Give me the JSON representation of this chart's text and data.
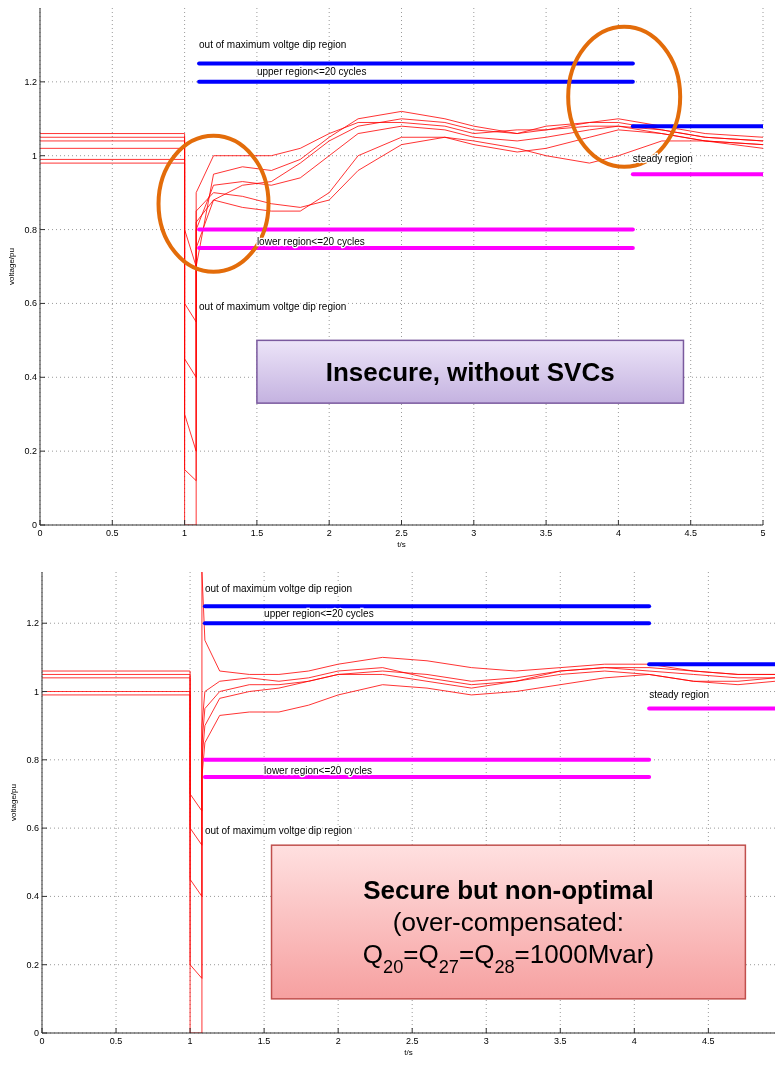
{
  "chart_data": [
    {
      "type": "line",
      "xlabel": "t/s",
      "ylabel": "voltage/pu",
      "xlim": [
        0,
        5
      ],
      "ylim": [
        0,
        1.4
      ],
      "xticks": [
        0,
        0.5,
        1,
        1.5,
        2,
        2.5,
        3,
        3.5,
        4,
        4.5,
        5
      ],
      "yticks": [
        0,
        0.2,
        0.4,
        0.6,
        0.8,
        1,
        1.2
      ],
      "grid": true,
      "line_style": "solid",
      "x": [
        0,
        1,
        1,
        1.08,
        1.08,
        1.2,
        1.4,
        1.6,
        1.8,
        2,
        2.2,
        2.5,
        2.8,
        3,
        3.3,
        3.5,
        3.8,
        4,
        4.3,
        4.6,
        5
      ],
      "series": [
        {
          "color": "#ff0000",
          "values": [
            1.06,
            1.06,
            0,
            0,
            0.75,
            0.88,
            0.92,
            0.93,
            0.98,
            1.04,
            1.08,
            1.1,
            1.09,
            1.07,
            1.06,
            1.07,
            1.08,
            1.08,
            1.06,
            1.04,
            1.03
          ]
        },
        {
          "color": "#ff0000",
          "values": [
            1.04,
            1.04,
            0.6,
            0.55,
            0.7,
            0.95,
            0.97,
            0.96,
            0.99,
            1.05,
            1.1,
            1.12,
            1.1,
            1.08,
            1.06,
            1.08,
            1.09,
            1.1,
            1.08,
            1.06,
            1.05
          ]
        },
        {
          "color": "#ff0000",
          "values": [
            1.02,
            1.02,
            0.8,
            0.7,
            0.9,
            1,
            1,
            1,
            1.02,
            1.06,
            1.09,
            1.09,
            1.08,
            1.06,
            1.07,
            1.07,
            1.09,
            1.09,
            1.07,
            1.05,
            1.04
          ]
        },
        {
          "color": "#ff0000",
          "values": [
            0.99,
            0.99,
            0.3,
            0.2,
            0.85,
            0.9,
            0.89,
            0.87,
            0.86,
            0.88,
            0.96,
            1.03,
            1.05,
            1.04,
            1.02,
            1,
            0.98,
            1,
            1.04,
            1.04,
            1.03
          ]
        },
        {
          "color": "#ff0000",
          "values": [
            1.05,
            1.05,
            0.15,
            0.12,
            0.8,
            0.92,
            0.93,
            0.92,
            0.94,
            1,
            1.06,
            1.08,
            1.07,
            1.05,
            1.04,
            1.05,
            1.07,
            1.08,
            1.07,
            1.05,
            1.04
          ]
        },
        {
          "color": "#ff0000",
          "values": [
            0.98,
            0.98,
            0.45,
            0.4,
            0.82,
            0.88,
            0.86,
            0.85,
            0.85,
            0.9,
            1,
            1.05,
            1.05,
            1.03,
            1.01,
            1.02,
            1.05,
            1.07,
            1.06,
            1.04,
            1.02
          ]
        },
        {
          "color": "#0000ff",
          "x": [
            1.1,
            4.1
          ],
          "values": [
            1.25,
            1.25
          ]
        },
        {
          "color": "#0000ff",
          "x": [
            1.1,
            4.1
          ],
          "values": [
            1.2,
            1.2
          ]
        },
        {
          "color": "#ff00ff",
          "x": [
            1.1,
            4.1
          ],
          "values": [
            0.8,
            0.8
          ]
        },
        {
          "color": "#ff00ff",
          "x": [
            1.1,
            4.1
          ],
          "values": [
            0.75,
            0.75
          ]
        },
        {
          "color": "#0000ff",
          "x": [
            4.1,
            5
          ],
          "values": [
            1.08,
            1.08
          ]
        },
        {
          "color": "#ff00ff",
          "x": [
            4.1,
            5
          ],
          "values": [
            0.95,
            0.95
          ]
        }
      ],
      "annotations": [
        "out of maximum voltge dip region",
        "upper region<=20 cycles",
        "lower region<=20 cycles",
        "out of maximum voltge dip region",
        "steady region",
        "Insecure, without SVCs"
      ]
    },
    {
      "type": "line",
      "xlabel": "t/s",
      "ylabel": "voltage/pu",
      "xlim": [
        0,
        4.95
      ],
      "ylim": [
        0,
        1.35
      ],
      "xticks": [
        0,
        0.5,
        1,
        1.5,
        2,
        2.5,
        3,
        3.5,
        4,
        4.5
      ],
      "yticks": [
        0,
        0.2,
        0.4,
        0.6,
        0.8,
        1,
        1.2
      ],
      "grid": true,
      "line_style": "solid",
      "x": [
        0,
        1,
        1,
        1.08,
        1.08,
        1.1,
        1.2,
        1.4,
        1.6,
        1.8,
        2,
        2.3,
        2.6,
        2.9,
        3.2,
        3.5,
        3.8,
        4.1,
        4.4,
        4.7,
        4.95
      ],
      "series": [
        {
          "color": "#ff0000",
          "values": [
            1.06,
            1.06,
            0,
            0,
            1.35,
            1.15,
            1.06,
            1.05,
            1.05,
            1.06,
            1.08,
            1.1,
            1.09,
            1.07,
            1.06,
            1.07,
            1.08,
            1.08,
            1.06,
            1.05,
            1.05
          ]
        },
        {
          "color": "#ff0000",
          "values": [
            1.04,
            1.04,
            0.7,
            0.65,
            0.8,
            0.9,
            0.98,
            1,
            1.01,
            1.03,
            1.05,
            1.06,
            1.05,
            1.03,
            1.04,
            1.06,
            1.07,
            1.06,
            1.05,
            1.04,
            1.04
          ]
        },
        {
          "color": "#ff0000",
          "values": [
            1,
            1,
            0.45,
            0.4,
            0.85,
            0.95,
            1,
            1.02,
            1.02,
            1.03,
            1.05,
            1.05,
            1.03,
            1.01,
            1.03,
            1.05,
            1.06,
            1.05,
            1.03,
            1.03,
            1.04
          ]
        },
        {
          "color": "#ff0000",
          "values": [
            0.99,
            0.99,
            0.2,
            0.16,
            0.75,
            0.85,
            0.93,
            0.94,
            0.94,
            0.96,
            0.99,
            1.02,
            1.01,
            0.99,
            1,
            1.02,
            1.04,
            1.05,
            1.03,
            1.02,
            1.03
          ]
        },
        {
          "color": "#ff0000",
          "values": [
            1.05,
            1.05,
            0.6,
            0.55,
            0.9,
            1,
            1.03,
            1.04,
            1.03,
            1.04,
            1.06,
            1.07,
            1.04,
            1.02,
            1.03,
            1.06,
            1.07,
            1.07,
            1.06,
            1.05,
            1.05
          ]
        },
        {
          "color": "#0000ff",
          "x": [
            1.1,
            4.1
          ],
          "values": [
            1.25,
            1.25
          ]
        },
        {
          "color": "#0000ff",
          "x": [
            1.1,
            4.1
          ],
          "values": [
            1.2,
            1.2
          ]
        },
        {
          "color": "#ff00ff",
          "x": [
            1.1,
            4.1
          ],
          "values": [
            0.8,
            0.8
          ]
        },
        {
          "color": "#ff00ff",
          "x": [
            1.1,
            4.1
          ],
          "values": [
            0.75,
            0.75
          ]
        },
        {
          "color": "#0000ff",
          "x": [
            4.1,
            4.95
          ],
          "values": [
            1.08,
            1.08
          ]
        },
        {
          "color": "#ff00ff",
          "x": [
            4.1,
            4.95
          ],
          "values": [
            0.95,
            0.95
          ]
        }
      ],
      "annotations": [
        "out of maximum voltge dip region",
        "upper region<=20 cycles",
        "lower region<=20 cycles",
        "out of maximum voltge dip region",
        "steady region",
        "Secure but non-optimal",
        "(over-compensated:",
        "Q$_{20}$=Q$_{27}$=Q$_{28}$=1000Mvar)"
      ]
    }
  ]
}
